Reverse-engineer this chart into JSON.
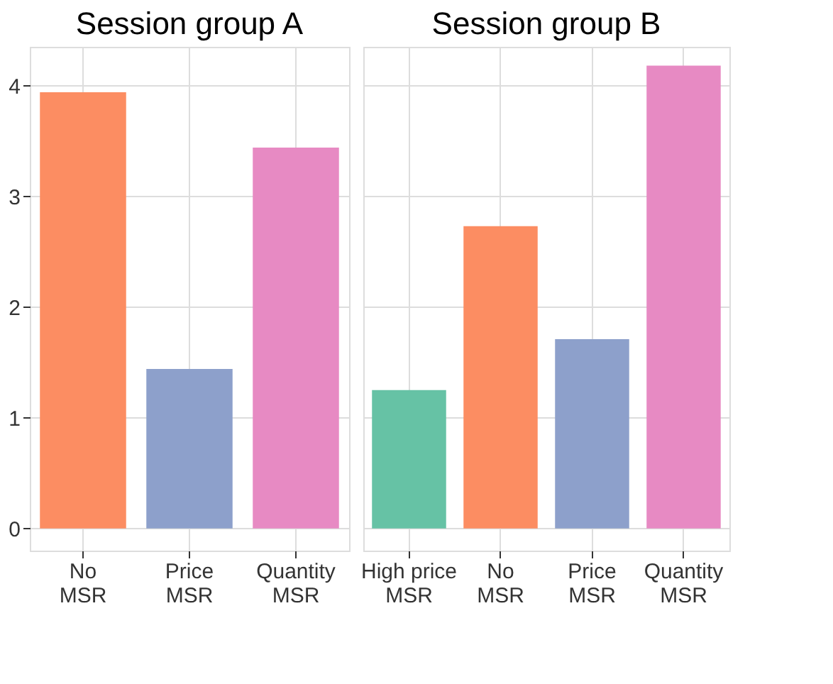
{
  "chart_data": [
    {
      "type": "bar",
      "title": "Session group A",
      "categories": [
        "No\nMSR",
        "Price\nMSR",
        "Quantity\nMSR"
      ],
      "values": [
        3.94,
        1.44,
        3.44
      ],
      "colors": [
        "#fc8d62",
        "#8da0cb",
        "#e78ac3"
      ],
      "ylim": [
        -0.2,
        4.35
      ],
      "yticks": [
        0,
        1,
        2,
        3,
        4
      ],
      "grid": true
    },
    {
      "type": "bar",
      "title": "Session group B",
      "categories": [
        "High price\nMSR",
        "No\nMSR",
        "Price\nMSR",
        "Quantity\nMSR"
      ],
      "values": [
        1.25,
        2.73,
        1.71,
        4.18
      ],
      "colors": [
        "#66c2a5",
        "#fc8d62",
        "#8da0cb",
        "#e78ac3"
      ],
      "ylim": [
        -0.2,
        4.35
      ],
      "yticks": [
        0,
        1,
        2,
        3,
        4
      ],
      "grid": true,
      "tick_labels": "x"
    }
  ]
}
